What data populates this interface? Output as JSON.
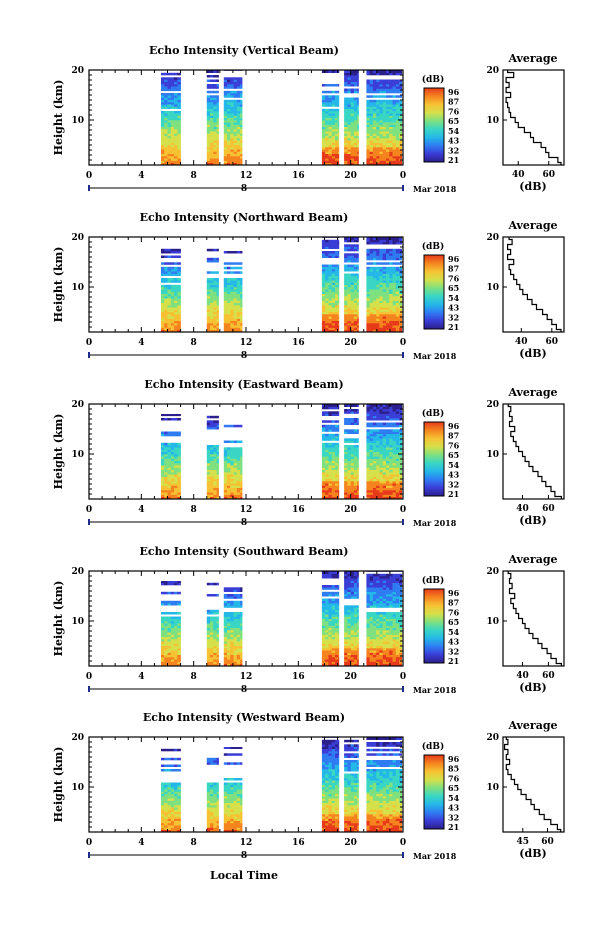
{
  "figure": {
    "xlabel": "Local Time",
    "date_label": "Mar 2018",
    "day_label": "8",
    "colorbar_unit": "(dB)",
    "avg_title": "Average",
    "avg_xlabel": "(dB)",
    "colorbar_colors": [
      "#2b1f8c",
      "#3a3dd6",
      "#2f7cf2",
      "#24b8e8",
      "#39d6c4",
      "#7fe07f",
      "#d6e04a",
      "#f6c233",
      "#f5841f",
      "#e63a1a"
    ]
  },
  "chart_data": [
    {
      "type": "heatmap",
      "title": "Echo Intensity (Vertical Beam)",
      "ylabel": "Height (km)",
      "xlim": [
        0,
        24
      ],
      "ylim": [
        1,
        20
      ],
      "xticks": [
        "0",
        "4",
        "8",
        "12",
        "16",
        "20",
        "0"
      ],
      "yticks": [
        "10",
        "20"
      ],
      "colorbar_ticks": [
        "96",
        "87",
        "76",
        "65",
        "54",
        "43",
        "32",
        "21"
      ],
      "data_time_ranges": [
        [
          5.5,
          7.0
        ],
        [
          9.0,
          9.9
        ],
        [
          10.3,
          11.7
        ],
        [
          17.8,
          19.1
        ],
        [
          19.5,
          20.6
        ],
        [
          21.2,
          23.9
        ]
      ],
      "avg_xticks": [
        "40",
        "60"
      ],
      "avg_xlim": [
        30,
        70
      ],
      "avg_profile": {
        "height": [
          1,
          2,
          3,
          4,
          5,
          6,
          7,
          8,
          9,
          10,
          11,
          12,
          13,
          14,
          15,
          16,
          17,
          18,
          19,
          20
        ],
        "db": [
          68,
          66,
          60,
          58,
          55,
          50,
          48,
          44,
          40,
          38,
          35,
          34,
          33,
          32,
          35,
          32,
          34,
          32,
          37,
          33
        ]
      }
    },
    {
      "type": "heatmap",
      "title": "Echo Intensity (Northward Beam)",
      "ylabel": "Height (km)",
      "xlim": [
        0,
        24
      ],
      "ylim": [
        1,
        20
      ],
      "xticks": [
        "0",
        "4",
        "8",
        "12",
        "16",
        "20",
        "0"
      ],
      "yticks": [
        "10",
        "20"
      ],
      "colorbar_ticks": [
        "96",
        "87",
        "76",
        "65",
        "54",
        "43",
        "32",
        "21"
      ],
      "data_time_ranges": [
        [
          5.5,
          7.0
        ],
        [
          9.0,
          9.9
        ],
        [
          10.3,
          11.7
        ],
        [
          17.8,
          19.1
        ],
        [
          19.5,
          20.6
        ],
        [
          21.2,
          23.9
        ]
      ],
      "avg_xticks": [
        "40",
        "60"
      ],
      "avg_xlim": [
        28,
        68
      ],
      "avg_profile": {
        "height": [
          1,
          2,
          3,
          4,
          5,
          6,
          7,
          8,
          9,
          10,
          11,
          12,
          13,
          14,
          15,
          16,
          17,
          18,
          19,
          20
        ],
        "db": [
          66,
          63,
          60,
          57,
          54,
          50,
          47,
          44,
          41,
          39,
          37,
          35,
          33,
          32,
          35,
          31,
          33,
          31,
          34,
          32
        ]
      }
    },
    {
      "type": "heatmap",
      "title": "Echo Intensity (Eastward Beam)",
      "ylabel": "Height (km)",
      "xlim": [
        0,
        24
      ],
      "ylim": [
        1,
        20
      ],
      "xticks": [
        "0",
        "4",
        "8",
        "12",
        "16",
        "20",
        "0"
      ],
      "yticks": [
        "10",
        "20"
      ],
      "colorbar_ticks": [
        "96",
        "87",
        "76",
        "65",
        "54",
        "43",
        "32",
        "21"
      ],
      "data_time_ranges": [
        [
          5.5,
          7.0
        ],
        [
          9.0,
          9.9
        ],
        [
          10.3,
          11.7
        ],
        [
          17.8,
          19.1
        ],
        [
          19.5,
          20.6
        ],
        [
          21.2,
          23.9
        ]
      ],
      "avg_xticks": [
        "40",
        "60"
      ],
      "avg_xlim": [
        25,
        72
      ],
      "avg_profile": {
        "height": [
          1,
          2,
          3,
          4,
          5,
          6,
          7,
          8,
          9,
          10,
          11,
          12,
          13,
          14,
          15,
          16,
          17,
          18,
          19,
          20
        ],
        "db": [
          70,
          65,
          62,
          58,
          55,
          52,
          48,
          45,
          42,
          40,
          37,
          35,
          33,
          31,
          34,
          30,
          32,
          30,
          31,
          29
        ]
      }
    },
    {
      "type": "heatmap",
      "title": "Echo Intensity (Southward Beam)",
      "ylabel": "Height (km)",
      "xlim": [
        0,
        24
      ],
      "ylim": [
        1,
        20
      ],
      "xticks": [
        "0",
        "4",
        "8",
        "12",
        "16",
        "20",
        "0"
      ],
      "yticks": [
        "10",
        "20"
      ],
      "colorbar_ticks": [
        "96",
        "87",
        "76",
        "65",
        "54",
        "43",
        "32",
        "21"
      ],
      "data_time_ranges": [
        [
          5.5,
          7.0
        ],
        [
          9.0,
          9.9
        ],
        [
          10.3,
          11.7
        ],
        [
          17.8,
          19.1
        ],
        [
          19.5,
          20.6
        ],
        [
          21.2,
          23.9
        ]
      ],
      "avg_xticks": [
        "40",
        "60"
      ],
      "avg_xlim": [
        25,
        72
      ],
      "avg_profile": {
        "height": [
          1,
          2,
          3,
          4,
          5,
          6,
          7,
          8,
          9,
          10,
          11,
          12,
          13,
          14,
          15,
          16,
          17,
          18,
          19,
          20
        ],
        "db": [
          70,
          66,
          62,
          59,
          55,
          52,
          48,
          45,
          42,
          40,
          37,
          35,
          33,
          31,
          34,
          30,
          32,
          30,
          31,
          29
        ]
      }
    },
    {
      "type": "heatmap",
      "title": "Echo Intensity (Westward Beam)",
      "ylabel": "Height (km)",
      "xlim": [
        0,
        24
      ],
      "ylim": [
        1,
        20
      ],
      "xticks": [
        "0",
        "4",
        "8",
        "12",
        "16",
        "20",
        "0"
      ],
      "yticks": [
        "10",
        "20"
      ],
      "colorbar_ticks": [
        "96",
        "85",
        "76",
        "65",
        "54",
        "43",
        "32",
        "21"
      ],
      "data_time_ranges": [
        [
          5.5,
          7.0
        ],
        [
          9.0,
          9.9
        ],
        [
          10.3,
          11.7
        ],
        [
          17.8,
          19.1
        ],
        [
          19.5,
          20.6
        ],
        [
          21.2,
          23.9
        ]
      ],
      "avg_xticks": [
        "45",
        "60"
      ],
      "avg_xlim": [
        33,
        70
      ],
      "avg_profile": {
        "height": [
          1,
          2,
          3,
          4,
          5,
          6,
          7,
          8,
          9,
          10,
          11,
          12,
          13,
          14,
          15,
          16,
          17,
          18,
          19,
          20
        ],
        "db": [
          68,
          66,
          62,
          58,
          55,
          52,
          50,
          47,
          44,
          42,
          40,
          38,
          36,
          35,
          37,
          35,
          36,
          34,
          36,
          35
        ]
      }
    }
  ]
}
